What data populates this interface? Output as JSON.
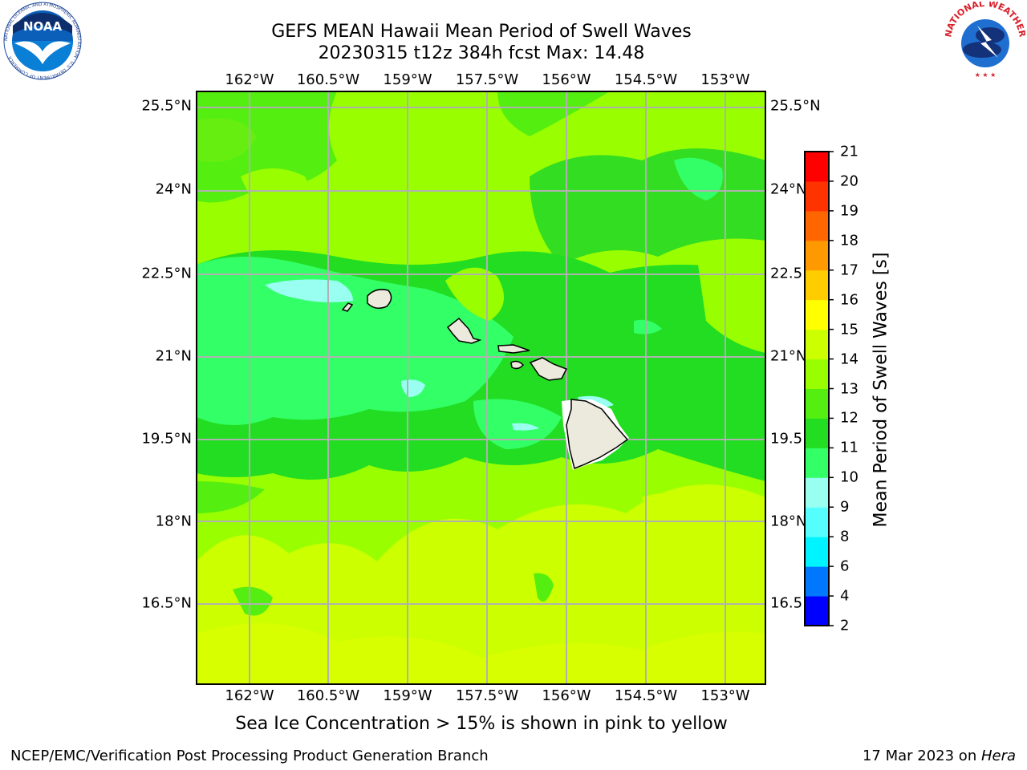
{
  "header": {
    "title_line1": "GEFS MEAN Hawaii Mean Period of Swell Waves",
    "title_line2": "20230315 t12z 384h fcst   Max: 14.48"
  },
  "map": {
    "lon_ticks": [
      "162°W",
      "160.5°W",
      "159°W",
      "157.5°W",
      "156°W",
      "154.5°W",
      "153°W"
    ],
    "lat_ticks_left": [
      "25.5°N",
      "24°N",
      "22.5°N",
      "21°N",
      "19.5°N",
      "18°N",
      "16.5°N"
    ],
    "lat_ticks_right": [
      "25.5°N",
      "24°N",
      "22.5",
      "21°N",
      "19.5",
      "18°N",
      "16.5"
    ],
    "gridlines": true,
    "land_color": "#eceadc",
    "islands": [
      "Niihau",
      "Kauai",
      "Oahu",
      "Molokai",
      "Lanai",
      "Maui",
      "Hawaii"
    ]
  },
  "colorbar": {
    "label": "Mean Period of Swell Waves [s]",
    "ticks": [
      "2",
      "4",
      "6",
      "8",
      "9",
      "10",
      "11",
      "12",
      "13",
      "14",
      "15",
      "16",
      "17",
      "18",
      "19",
      "20",
      "21"
    ],
    "colors": [
      "#0000ff",
      "#0077ff",
      "#00f4ff",
      "#55ffff",
      "#99fff0",
      "#33ff66",
      "#22dd22",
      "#55ee11",
      "#99ff00",
      "#ccff00",
      "#ffff00",
      "#ffcc00",
      "#ff9900",
      "#ff6600",
      "#ff3300",
      "#ff0000"
    ]
  },
  "chart_data": {
    "type": "heatmap",
    "title": "GEFS MEAN Hawaii Mean Period of Swell Waves",
    "subtitle": "20230315 t12z 384h fcst   Max: 14.48",
    "max_value": 14.48,
    "units": "s",
    "x_ticks": [
      "162°W",
      "160.5°W",
      "159°W",
      "157.5°W",
      "156°W",
      "154.5°W",
      "153°W"
    ],
    "y_ticks": [
      "25.5°N",
      "24°N",
      "22.5°N",
      "21°N",
      "19.5°N",
      "18°N",
      "16.5°N"
    ],
    "lon_range": [
      -163,
      -152.4
    ],
    "lat_range": [
      15.2,
      26
    ],
    "levels": [
      2,
      4,
      6,
      8,
      9,
      10,
      11,
      12,
      13,
      14,
      15,
      16,
      17,
      18,
      19,
      20,
      21
    ],
    "grid": true
  },
  "note": "Sea Ice Concentration > 15% is shown in pink to yellow",
  "footer": {
    "left": "NCEP/EMC/Verification Post Processing Product Generation Branch",
    "date": "17 Mar 2023 on ",
    "machine": "Hera"
  },
  "logos": {
    "left_icon": "noaa-logo",
    "right_icon": "nws-logo",
    "noaa_text": "NOAA",
    "noaa_ring": "NATIONAL OCEANIC AND ATMOSPHERIC ADMINISTRATION · U.S. DEPARTMENT OF COMMERCE",
    "nws_ring": "NATIONAL WEATHER SERVICE"
  }
}
